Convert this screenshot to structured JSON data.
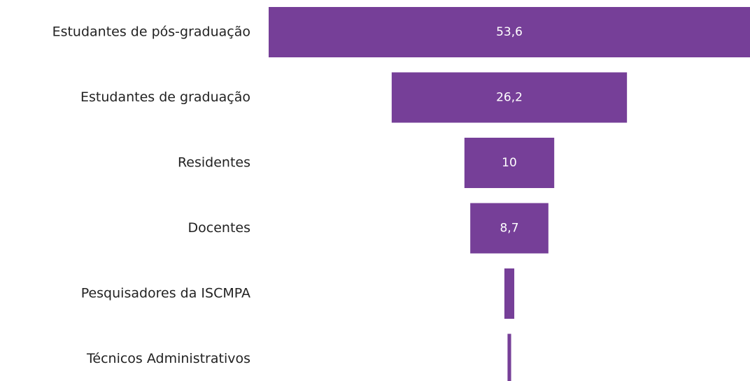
{
  "chart_data": {
    "type": "funnel",
    "categories": [
      "Estudantes de pós-graduação",
      "Estudantes de graduação",
      "Residentes",
      "Docentes",
      "Pesquisadores da ISCMPA",
      "Técnicos Administrativos"
    ],
    "values": [
      53.6,
      26.2,
      10,
      8.7,
      1.1,
      0.4
    ],
    "value_labels": [
      "53,6",
      "26,2",
      "10",
      "8,7",
      null,
      null
    ],
    "color": "#763f98"
  }
}
